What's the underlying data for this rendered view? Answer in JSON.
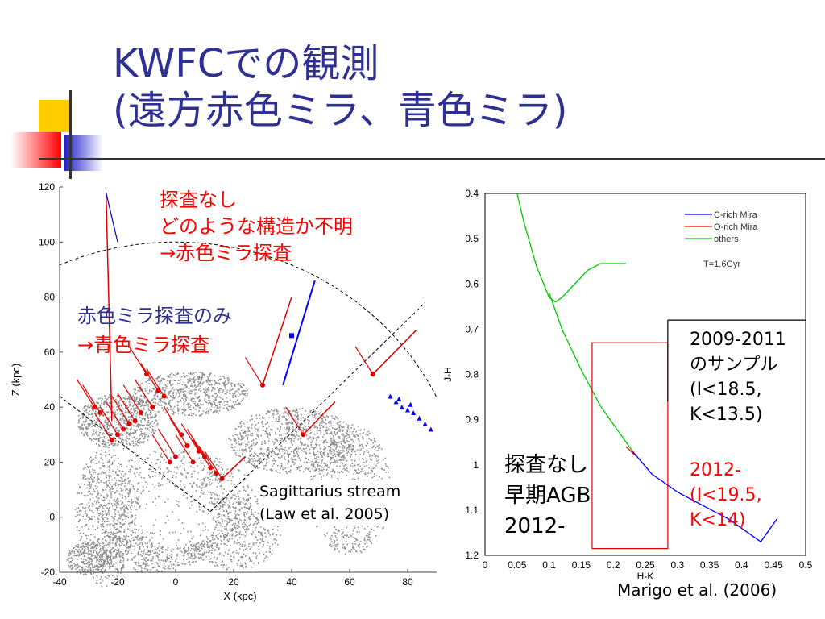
{
  "slide": {
    "title_line1": "KWFCでの観測",
    "title_line2": "(遠方赤色ミラ、青色ミラ)",
    "colors": {
      "title": "#2e3192",
      "annotation_red": "#ff0000",
      "annotation_blue": "#2e3192"
    }
  },
  "annotations": {
    "no_survey_1": "探査なし",
    "no_survey_2": "どのような構造か不明",
    "no_survey_3": "→赤色ミラ探査",
    "red_only_1": "赤色ミラ探査のみ",
    "red_only_2": "→青色ミラ探査",
    "stream_1": "Sagittarius stream",
    "stream_2": "(Law et al. 2005)",
    "agb_1": "探査なし",
    "agb_2": "早期AGB",
    "agb_3": "2012-",
    "sample_1": "2009-2011",
    "sample_2": "のサンプル",
    "sample_3": "(I<18.5,",
    "sample_4": "K<13.5)",
    "new_1": "2012-",
    "new_2": "(I<19.5,",
    "new_3": "K<14)",
    "credit": "Marigo et al. (2006)"
  },
  "chart_data": [
    {
      "type": "scatter",
      "title": "",
      "xlabel": "X (kpc)",
      "ylabel": "Z (kpc)",
      "xlim": [
        -40,
        90
      ],
      "ylim": [
        -20,
        120
      ],
      "xticks": [
        -40,
        -20,
        0,
        20,
        40,
        60,
        80
      ],
      "yticks": [
        -20,
        0,
        20,
        40,
        60,
        80,
        100,
        120
      ],
      "xtick_labels": [
        "-40",
        "-20",
        "0",
        "20",
        "40",
        "60",
        "80"
      ],
      "ytick_labels": [
        "-20",
        "0",
        "20",
        "40",
        "60",
        "80",
        "100",
        "120"
      ],
      "red_points": [
        [
          -10,
          52
        ],
        [
          -6,
          46
        ],
        [
          -4,
          44
        ],
        [
          -8,
          40
        ],
        [
          -12,
          38
        ],
        [
          -14,
          35
        ],
        [
          -16,
          34
        ],
        [
          -18,
          32
        ],
        [
          -20,
          30
        ],
        [
          -22,
          28
        ],
        [
          2,
          30
        ],
        [
          4,
          26
        ],
        [
          0,
          22
        ],
        [
          -2,
          20
        ],
        [
          6,
          20
        ],
        [
          8,
          24
        ],
        [
          10,
          22
        ],
        [
          12,
          18
        ],
        [
          14,
          16
        ],
        [
          30,
          48
        ],
        [
          44,
          30
        ],
        [
          68,
          52
        ],
        [
          -28,
          40
        ],
        [
          -26,
          38
        ],
        [
          16,
          14
        ]
      ],
      "red_arrows": [
        [
          -22,
          35,
          -24,
          118
        ],
        [
          30,
          48,
          40,
          80
        ],
        [
          68,
          52,
          83,
          68
        ],
        [
          44,
          30,
          55,
          42
        ],
        [
          16,
          14,
          24,
          22
        ]
      ],
      "blue_points": [
        [
          40,
          66
        ]
      ],
      "blue_arrows": [
        [
          -20,
          100,
          -24,
          118
        ]
      ],
      "blue_triangles": [
        [
          74,
          44
        ],
        [
          77,
          43
        ],
        [
          78,
          40
        ],
        [
          80,
          39
        ],
        [
          82,
          38
        ],
        [
          84,
          36
        ],
        [
          86,
          34
        ],
        [
          88,
          32
        ],
        [
          76,
          42
        ],
        [
          81,
          41
        ]
      ],
      "dashed_arc_radius": 100,
      "dashed_lines": [
        [
          [
            -40,
            44
          ],
          [
            12,
            2
          ]
        ],
        [
          [
            12,
            2
          ],
          [
            86,
            78
          ]
        ]
      ]
    },
    {
      "type": "line",
      "title": "",
      "xlabel": "H-K",
      "ylabel": "J-H",
      "xlim": [
        0,
        0.5
      ],
      "ylim": [
        1.2,
        0.4
      ],
      "xticks": [
        0,
        0.05,
        0.1,
        0.15,
        0.2,
        0.25,
        0.3,
        0.35,
        0.4,
        0.45,
        0.5
      ],
      "yticks": [
        0.4,
        0.5,
        0.6,
        0.7,
        0.8,
        0.9,
        1.0,
        1.1,
        1.2
      ],
      "xtick_labels": [
        "0",
        "0.05",
        "0.1",
        "0.15",
        "0.2",
        "0.25",
        "0.3",
        "0.35",
        "0.4",
        "0.45",
        "0.5"
      ],
      "ytick_labels": [
        "0.4",
        "0.5",
        "0.6",
        "0.7",
        "0.8",
        "0.9",
        "1",
        "1.1",
        "1.2"
      ],
      "annotation": "T=1.6Gyr",
      "series": [
        {
          "name": "C-rich Mira",
          "color": "#0000ff",
          "points": [
            [
              0.23,
              0.97
            ],
            [
              0.26,
              1.02
            ],
            [
              0.3,
              1.06
            ],
            [
              0.34,
              1.09
            ],
            [
              0.38,
              1.12
            ],
            [
              0.41,
              1.15
            ],
            [
              0.43,
              1.17
            ],
            [
              0.44,
              1.15
            ],
            [
              0.455,
              1.12
            ]
          ]
        },
        {
          "name": "O-rich Mira",
          "color": "#ff0000",
          "points": [
            [
              0.22,
              0.96
            ],
            [
              0.235,
              0.98
            ]
          ]
        },
        {
          "name": "others",
          "color": "#00cc00",
          "points": [
            [
              0.05,
              0.4
            ],
            [
              0.06,
              0.46
            ],
            [
              0.08,
              0.56
            ],
            [
              0.1,
              0.63
            ],
            [
              0.11,
              0.64
            ],
            [
              0.12,
              0.63
            ],
            [
              0.14,
              0.6
            ],
            [
              0.16,
              0.57
            ],
            [
              0.18,
              0.555
            ],
            [
              0.22,
              0.555
            ]
          ]
        },
        {
          "name": "others",
          "color": "#00cc00",
          "points": [
            [
              0.1,
              0.62
            ],
            [
              0.12,
              0.7
            ],
            [
              0.15,
              0.79
            ],
            [
              0.18,
              0.87
            ],
            [
              0.21,
              0.93
            ],
            [
              0.23,
              0.97
            ]
          ]
        }
      ]
    }
  ]
}
